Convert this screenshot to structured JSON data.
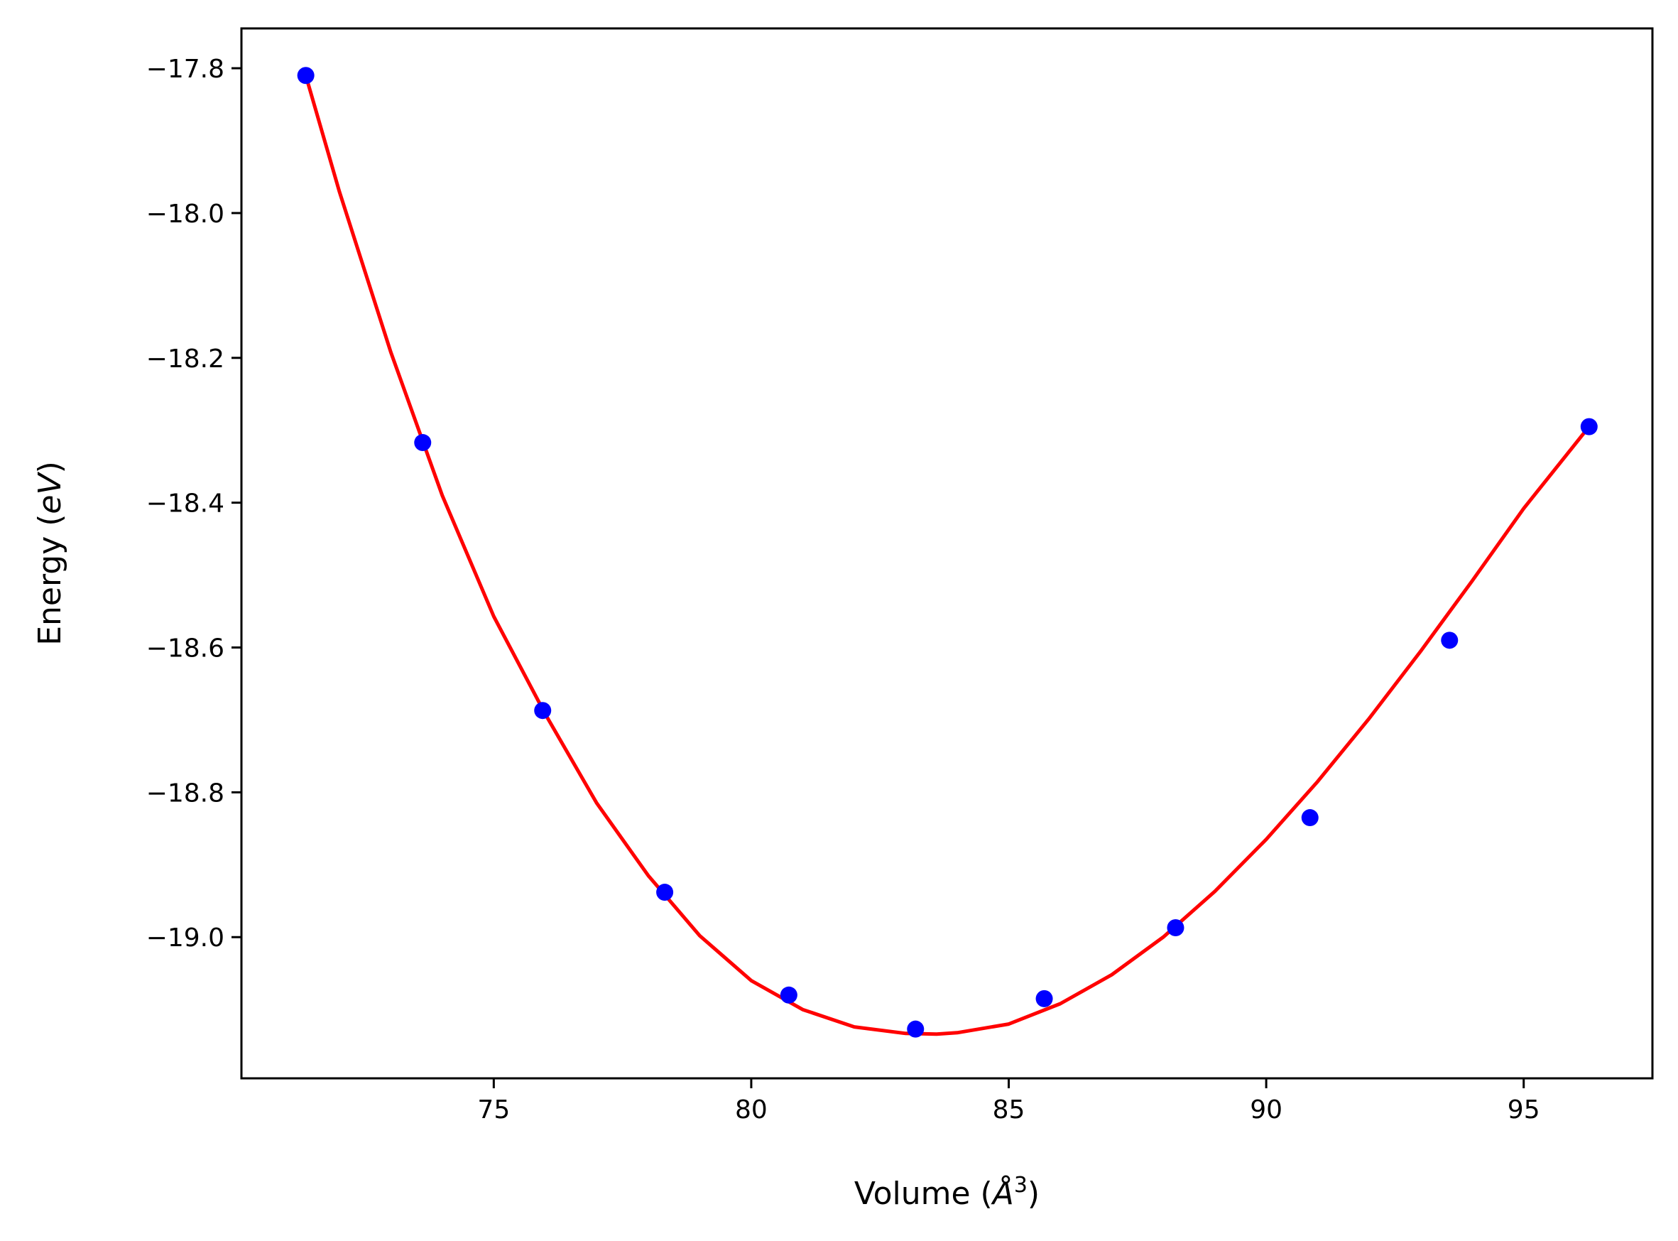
{
  "chart_data": {
    "type": "scatter",
    "xlabel": {
      "prefix": "Volume (",
      "symbol": "Å",
      "exponent": "3",
      "suffix": ")"
    },
    "ylabel": {
      "prefix": "Energy (",
      "unit": "eV",
      "suffix": ")"
    },
    "xlim": [
      70.1,
      97.5
    ],
    "ylim": [
      -19.195,
      -17.745
    ],
    "x_ticks": [
      75,
      80,
      85,
      90,
      95
    ],
    "x_tick_labels": [
      "75",
      "80",
      "85",
      "90",
      "95"
    ],
    "y_ticks": [
      -17.8,
      -18.0,
      -18.2,
      -18.4,
      -18.6,
      -18.8,
      -19.0
    ],
    "y_tick_labels": [
      "−17.8",
      "−18.0",
      "−18.2",
      "−18.4",
      "−18.6",
      "−18.8",
      "−19.0"
    ],
    "grid": false,
    "series": [
      {
        "type": "scatter",
        "color": "#0000ff",
        "points": [
          {
            "x": 71.35,
            "y": -17.81
          },
          {
            "x": 73.62,
            "y": -18.317
          },
          {
            "x": 75.95,
            "y": -18.687
          },
          {
            "x": 78.32,
            "y": -18.938
          },
          {
            "x": 80.73,
            "y": -19.08
          },
          {
            "x": 83.19,
            "y": -19.127
          },
          {
            "x": 85.69,
            "y": -19.085
          },
          {
            "x": 88.24,
            "y": -18.987
          },
          {
            "x": 90.85,
            "y": -18.835
          },
          {
            "x": 93.56,
            "y": -18.59
          },
          {
            "x": 96.27,
            "y": -18.295
          }
        ]
      },
      {
        "type": "line",
        "color": "#ff0000",
        "points": [
          {
            "x": 71.35,
            "y": -17.81
          },
          {
            "x": 72.0,
            "y": -17.97
          },
          {
            "x": 73.0,
            "y": -18.192
          },
          {
            "x": 74.0,
            "y": -18.39
          },
          {
            "x": 75.0,
            "y": -18.557
          },
          {
            "x": 76.0,
            "y": -18.692
          },
          {
            "x": 77.0,
            "y": -18.815
          },
          {
            "x": 78.0,
            "y": -18.915
          },
          {
            "x": 79.0,
            "y": -18.998
          },
          {
            "x": 80.0,
            "y": -19.06
          },
          {
            "x": 81.0,
            "y": -19.1
          },
          {
            "x": 82.0,
            "y": -19.124
          },
          {
            "x": 83.0,
            "y": -19.133
          },
          {
            "x": 83.6,
            "y": -19.134
          },
          {
            "x": 84.0,
            "y": -19.132
          },
          {
            "x": 85.0,
            "y": -19.12
          },
          {
            "x": 86.0,
            "y": -19.092
          },
          {
            "x": 87.0,
            "y": -19.052
          },
          {
            "x": 88.0,
            "y": -19.0
          },
          {
            "x": 89.0,
            "y": -18.937
          },
          {
            "x": 90.0,
            "y": -18.865
          },
          {
            "x": 91.0,
            "y": -18.785
          },
          {
            "x": 92.0,
            "y": -18.698
          },
          {
            "x": 93.0,
            "y": -18.605
          },
          {
            "x": 94.0,
            "y": -18.508
          },
          {
            "x": 95.0,
            "y": -18.408
          },
          {
            "x": 96.27,
            "y": -18.295
          }
        ]
      }
    ]
  }
}
